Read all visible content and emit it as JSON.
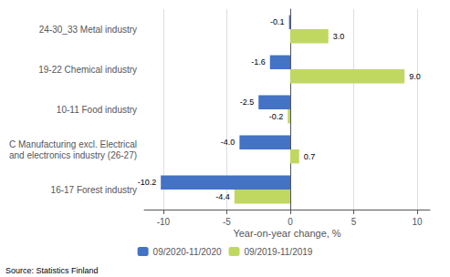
{
  "chart_data": {
    "type": "bar",
    "orientation": "horizontal",
    "categories": [
      "16-17 Forest industry",
      "C Manufacturing excl. Electrical\nand electronics industry (26-27)",
      "10-11 Food industry",
      "19-22 Chemical industry",
      "24-30_33 Metal industry"
    ],
    "series": [
      {
        "name": "09/2020-11/2020",
        "color": "#4472C4",
        "values": [
          -10.2,
          -4.0,
          -2.5,
          -1.6,
          -0.1
        ],
        "value_labels": [
          "-10.2",
          "-4.0",
          "-2.5",
          "-1.6",
          "-0.1"
        ]
      },
      {
        "name": "09/2019-11/2019",
        "color": "#C0D860",
        "values": [
          -4.4,
          0.7,
          -0.2,
          9.0,
          3.0
        ],
        "value_labels": [
          "-4.4",
          "0.7",
          "-0.2",
          "9.0",
          "3.0"
        ]
      }
    ],
    "xlabel": "Year-on-year change, %",
    "xlim": [
      -11.5,
      11.0
    ],
    "xticks": [
      -10,
      -5,
      0,
      5,
      10
    ],
    "grid": true,
    "legend": "bottom",
    "data_labels": true,
    "source": "Source: Statistics Finland"
  }
}
